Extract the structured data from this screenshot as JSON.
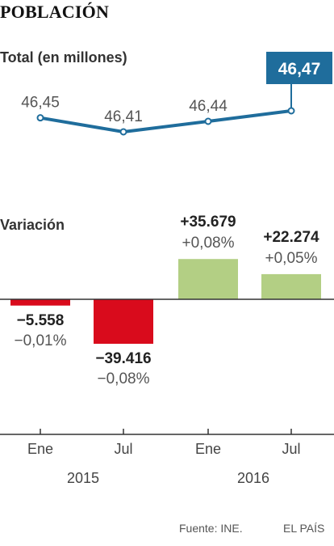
{
  "title": "POBLACIÓN",
  "source": "Fuente: INE.",
  "brand": "EL PAÍS",
  "colors": {
    "line": "#1f6d9c",
    "negative": "#d90b1c",
    "positive": "#b3cf84",
    "axis": "#333333"
  },
  "chart_data": [
    {
      "type": "line",
      "title": "Total (en millones)",
      "categories": [
        "Ene 2015",
        "Jul 2015",
        "Ene 2016",
        "Jul 2016"
      ],
      "values": [
        46.45,
        46.41,
        46.44,
        46.47
      ],
      "labels": [
        "46,45",
        "46,41",
        "46,44",
        "46,47"
      ],
      "highlight_index": 3
    },
    {
      "type": "bar",
      "title": "Variación",
      "categories": [
        "Ene 2015",
        "Jul 2015",
        "Ene 2016",
        "Jul 2016"
      ],
      "values": [
        -5558,
        -39416,
        35679,
        22274
      ],
      "value_labels": [
        "−5.558",
        "−39.416",
        "+35.679",
        "+22.274"
      ],
      "pct_labels": [
        "−0,01%",
        "−0,08%",
        "+0,08%",
        "+0,05%"
      ],
      "x_ticks": [
        "Ene",
        "Jul",
        "Ene",
        "Jul"
      ],
      "x_years": [
        "2015",
        "2016"
      ]
    }
  ]
}
